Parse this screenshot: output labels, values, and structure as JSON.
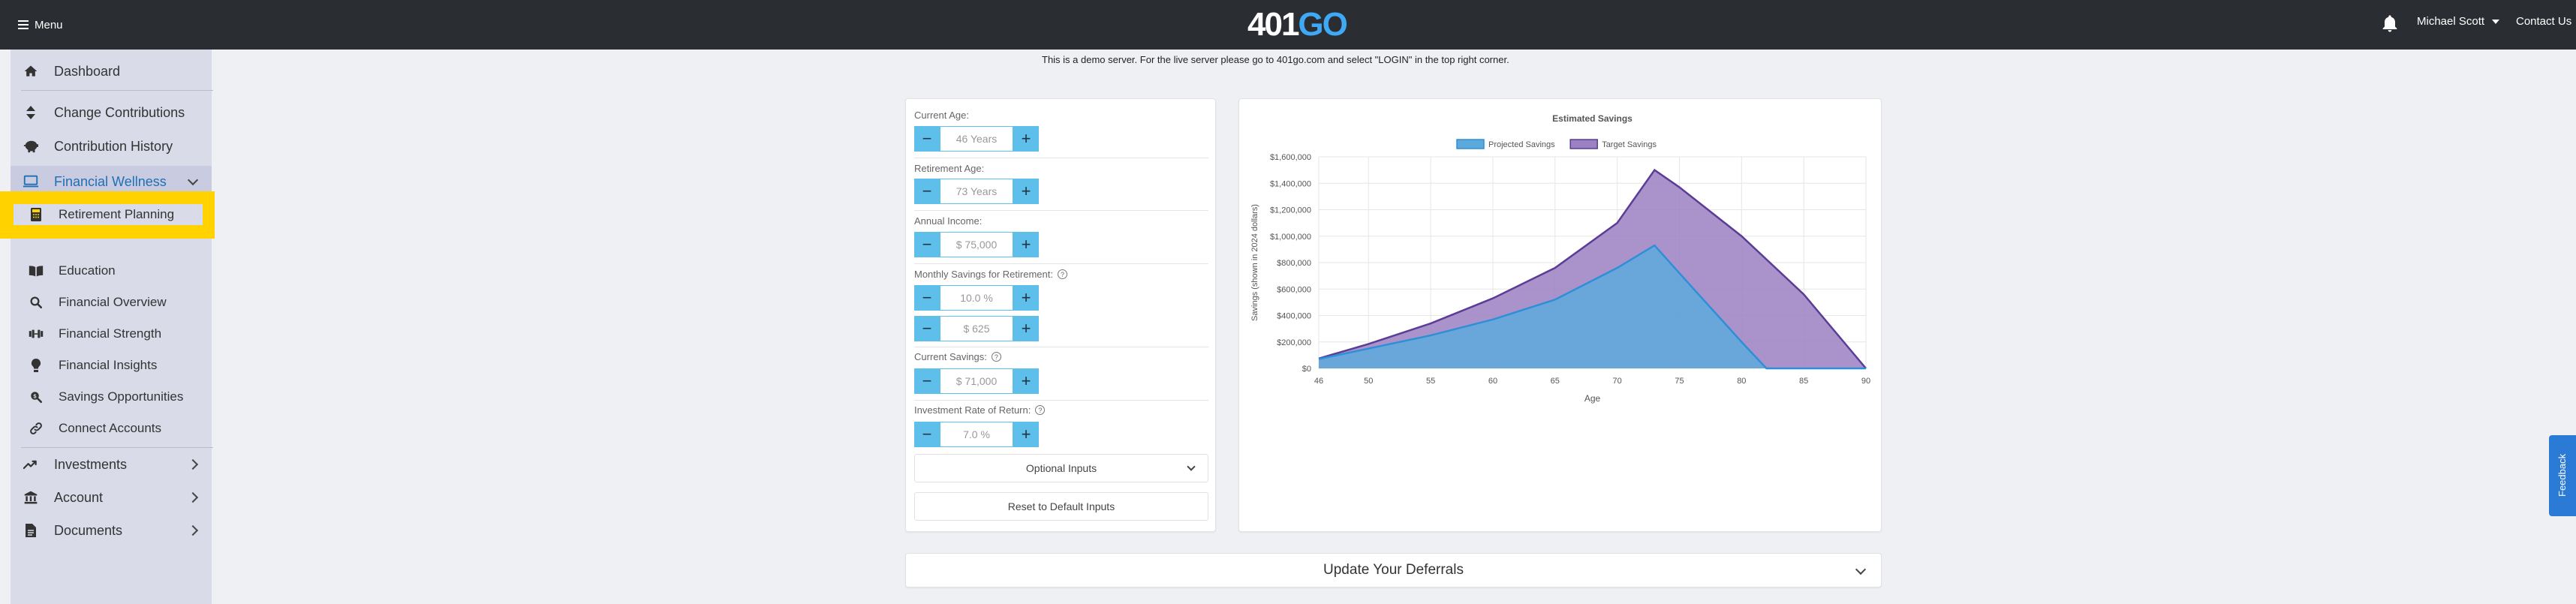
{
  "header": {
    "menu_label": "Menu",
    "logo_part1": "401",
    "logo_part2": "GO",
    "user_name": "Michael Scott",
    "contact_label": "Contact Us"
  },
  "sidebar": {
    "dashboard": "Dashboard",
    "change_contributions": "Change Contributions",
    "contribution_history": "Contribution History",
    "financial_wellness": "Financial Wellness",
    "sub": [
      "Retirement Planning",
      "Education",
      "Financial Overview",
      "Financial Strength",
      "Financial Insights",
      "Savings Opportunities",
      "Connect Accounts"
    ],
    "investments": "Investments",
    "account": "Account",
    "documents": "Documents"
  },
  "demo_note": "This is a demo server. For the live server please go to 401go.com and select \"LOGIN\" in the top right corner.",
  "inputs": {
    "current_age_label": "Current Age:",
    "current_age_value": "46 Years",
    "retirement_age_label": "Retirement Age:",
    "retirement_age_value": "73 Years",
    "annual_income_label": "Annual Income:",
    "annual_income_value": "$ 75,000",
    "monthly_savings_label": "Monthly Savings for Retirement:",
    "monthly_savings_pct": "10.0 %",
    "monthly_savings_amt": "$ 625",
    "current_savings_label": "Current Savings:",
    "current_savings_value": "$ 71,000",
    "investment_rate_label": "Investment Rate of Return:",
    "investment_rate_value": "7.0 %",
    "optional_inputs": "Optional Inputs",
    "reset_label": "Reset to Default Inputs"
  },
  "deferrals_label": "Update Your Deferrals",
  "feedback_label": "Feedback",
  "chart_data": {
    "type": "area",
    "title": "Estimated Savings",
    "xlabel": "Age",
    "ylabel": "Savings (shown in 2024 dollars)",
    "x_ticks": [
      "46",
      "50",
      "55",
      "60",
      "65",
      "70",
      "75",
      "80",
      "85",
      "90"
    ],
    "y_ticks": [
      "$0",
      "$200,000",
      "$400,000",
      "$600,000",
      "$800,000",
      "$1,000,000",
      "$1,200,000",
      "$1,400,000",
      "$1,600,000"
    ],
    "xlim": [
      46,
      90
    ],
    "ylim": [
      0,
      1600000
    ],
    "legend_position": "top",
    "series": [
      {
        "name": "Target Savings",
        "color": "#9b80c2",
        "line_color": "#5b3c96",
        "points": [
          [
            46,
            75000
          ],
          [
            50,
            185000
          ],
          [
            55,
            340000
          ],
          [
            60,
            530000
          ],
          [
            65,
            760000
          ],
          [
            70,
            1100000
          ],
          [
            73,
            1500000
          ],
          [
            75,
            1370000
          ],
          [
            80,
            1000000
          ],
          [
            85,
            560000
          ],
          [
            90,
            0
          ]
        ]
      },
      {
        "name": "Projected Savings",
        "color": "#5ea9dc",
        "line_color": "#2f8fd6",
        "points": [
          [
            46,
            71000
          ],
          [
            50,
            150000
          ],
          [
            55,
            250000
          ],
          [
            60,
            370000
          ],
          [
            65,
            520000
          ],
          [
            70,
            760000
          ],
          [
            73,
            930000
          ],
          [
            75,
            720000
          ],
          [
            80,
            200000
          ],
          [
            82,
            0
          ],
          [
            90,
            0
          ]
        ]
      }
    ]
  }
}
